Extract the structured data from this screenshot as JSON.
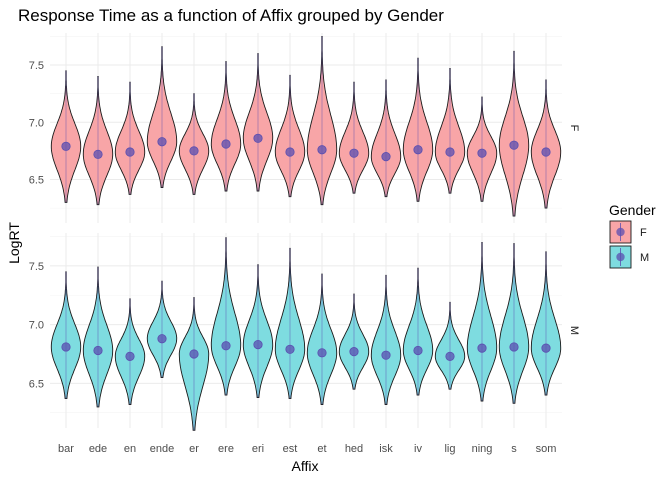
{
  "chart_data": {
    "type": "violin",
    "title": "Response Time as a function of Affix grouped by Gender",
    "xlabel": "Affix",
    "ylabel": "LogRT",
    "categories": [
      "bar",
      "ede",
      "en",
      "ende",
      "er",
      "ere",
      "eri",
      "est",
      "et",
      "hed",
      "isk",
      "iv",
      "lig",
      "ning",
      "s",
      "som"
    ],
    "yticks": [
      "6.5",
      "7.0",
      "7.5"
    ],
    "ylim": [
      6.12,
      7.78
    ],
    "grid": true,
    "legend": {
      "title": "Gender",
      "position": "right",
      "entries": [
        {
          "label": "F",
          "color": "#F8A5A7"
        },
        {
          "label": "M",
          "color": "#7EDCE0"
        }
      ]
    },
    "point_color": "#5B4FB0",
    "facets": [
      {
        "label": "F",
        "fill": "#F8A5A7",
        "series": [
          {
            "affix": "bar",
            "min": 6.3,
            "max": 7.45,
            "mean": 6.79
          },
          {
            "affix": "ede",
            "min": 6.28,
            "max": 7.4,
            "mean": 6.72
          },
          {
            "affix": "en",
            "min": 6.37,
            "max": 7.35,
            "mean": 6.74
          },
          {
            "affix": "ende",
            "min": 6.43,
            "max": 7.66,
            "mean": 6.83
          },
          {
            "affix": "er",
            "min": 6.37,
            "max": 7.25,
            "mean": 6.75
          },
          {
            "affix": "ere",
            "min": 6.4,
            "max": 7.53,
            "mean": 6.81
          },
          {
            "affix": "eri",
            "min": 6.4,
            "max": 7.6,
            "mean": 6.86
          },
          {
            "affix": "est",
            "min": 6.35,
            "max": 7.41,
            "mean": 6.74
          },
          {
            "affix": "et",
            "min": 6.28,
            "max": 7.75,
            "mean": 6.76
          },
          {
            "affix": "hed",
            "min": 6.38,
            "max": 7.35,
            "mean": 6.73
          },
          {
            "affix": "isk",
            "min": 6.35,
            "max": 7.37,
            "mean": 6.7
          },
          {
            "affix": "iv",
            "min": 6.31,
            "max": 7.56,
            "mean": 6.76
          },
          {
            "affix": "lig",
            "min": 6.38,
            "max": 7.47,
            "mean": 6.74
          },
          {
            "affix": "ning",
            "min": 6.31,
            "max": 7.22,
            "mean": 6.73
          },
          {
            "affix": "s",
            "min": 6.18,
            "max": 7.62,
            "mean": 6.8
          },
          {
            "affix": "som",
            "min": 6.25,
            "max": 7.37,
            "mean": 6.74
          }
        ]
      },
      {
        "label": "M",
        "fill": "#7EDCE0",
        "series": [
          {
            "affix": "bar",
            "min": 6.37,
            "max": 7.45,
            "mean": 6.81
          },
          {
            "affix": "ede",
            "min": 6.3,
            "max": 7.49,
            "mean": 6.78
          },
          {
            "affix": "en",
            "min": 6.32,
            "max": 7.22,
            "mean": 6.73
          },
          {
            "affix": "ende",
            "min": 6.55,
            "max": 7.37,
            "mean": 6.88
          },
          {
            "affix": "er",
            "min": 6.1,
            "max": 7.23,
            "mean": 6.75
          },
          {
            "affix": "ere",
            "min": 6.4,
            "max": 7.74,
            "mean": 6.82
          },
          {
            "affix": "eri",
            "min": 6.38,
            "max": 7.51,
            "mean": 6.83
          },
          {
            "affix": "est",
            "min": 6.37,
            "max": 7.65,
            "mean": 6.79
          },
          {
            "affix": "et",
            "min": 6.32,
            "max": 7.43,
            "mean": 6.76
          },
          {
            "affix": "hed",
            "min": 6.45,
            "max": 7.26,
            "mean": 6.77
          },
          {
            "affix": "isk",
            "min": 6.32,
            "max": 7.42,
            "mean": 6.74
          },
          {
            "affix": "iv",
            "min": 6.4,
            "max": 7.48,
            "mean": 6.78
          },
          {
            "affix": "lig",
            "min": 6.45,
            "max": 7.19,
            "mean": 6.73
          },
          {
            "affix": "ning",
            "min": 6.35,
            "max": 7.7,
            "mean": 6.8
          },
          {
            "affix": "s",
            "min": 6.33,
            "max": 7.69,
            "mean": 6.81
          },
          {
            "affix": "som",
            "min": 6.4,
            "max": 7.62,
            "mean": 6.8
          }
        ]
      }
    ]
  }
}
